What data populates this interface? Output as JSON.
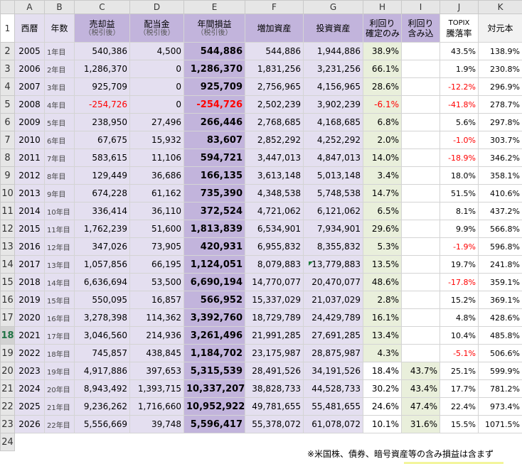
{
  "columns": [
    "A",
    "B",
    "C",
    "D",
    "E",
    "F",
    "G",
    "H",
    "I",
    "J",
    "K"
  ],
  "headers": {
    "a": "西暦",
    "b": "年数",
    "c_main": "売却益",
    "c_sub": "（税引後）",
    "d_main": "配当金",
    "d_sub": "（税引後）",
    "e_main": "年間損益",
    "e_sub": "（税引後）",
    "f": "増加資産",
    "g": "投資資産",
    "h_l1": "利回り",
    "h_l2": "確定のみ",
    "i_l1": "利回り",
    "i_l2": "含み込",
    "j_l1": "TOPIX",
    "j_l2": "騰落率",
    "k": "対元本"
  },
  "row_numbers": [
    "1",
    "2",
    "3",
    "4",
    "5",
    "6",
    "7",
    "8",
    "9",
    "10",
    "11",
    "12",
    "13",
    "14",
    "15",
    "16",
    "17",
    "18",
    "19",
    "20",
    "21",
    "22",
    "23",
    "24"
  ],
  "selected_row": "18",
  "rows": [
    {
      "year": "2005",
      "n": "1年目",
      "sale": "540,386",
      "div": "4,500",
      "annual": "544,886",
      "inc": "544,886",
      "inv": "1,944,886",
      "yc": "38.9%",
      "yi": "",
      "topix": "43.5%",
      "base": "138.9%"
    },
    {
      "year": "2006",
      "n": "2年目",
      "sale": "1,286,370",
      "div": "0",
      "annual": "1,286,370",
      "inc": "1,831,256",
      "inv": "3,231,256",
      "yc": "66.1%",
      "yi": "",
      "topix": "1.9%",
      "base": "230.8%"
    },
    {
      "year": "2007",
      "n": "3年目",
      "sale": "925,709",
      "div": "0",
      "annual": "925,709",
      "inc": "2,756,965",
      "inv": "4,156,965",
      "yc": "28.6%",
      "yi": "",
      "topix": "-12.2%",
      "base": "296.9%"
    },
    {
      "year": "2008",
      "n": "4年目",
      "sale": "-254,726",
      "div": "0",
      "annual": "-254,726",
      "inc": "2,502,239",
      "inv": "3,902,239",
      "yc": "-6.1%",
      "yi": "",
      "topix": "-41.8%",
      "base": "278.7%"
    },
    {
      "year": "2009",
      "n": "5年目",
      "sale": "238,950",
      "div": "27,496",
      "annual": "266,446",
      "inc": "2,768,685",
      "inv": "4,168,685",
      "yc": "6.8%",
      "yi": "",
      "topix": "5.6%",
      "base": "297.8%"
    },
    {
      "year": "2010",
      "n": "6年目",
      "sale": "67,675",
      "div": "15,932",
      "annual": "83,607",
      "inc": "2,852,292",
      "inv": "4,252,292",
      "yc": "2.0%",
      "yi": "",
      "topix": "-1.0%",
      "base": "303.7%"
    },
    {
      "year": "2011",
      "n": "7年目",
      "sale": "583,615",
      "div": "11,106",
      "annual": "594,721",
      "inc": "3,447,013",
      "inv": "4,847,013",
      "yc": "14.0%",
      "yi": "",
      "topix": "-18.9%",
      "base": "346.2%"
    },
    {
      "year": "2012",
      "n": "8年目",
      "sale": "129,449",
      "div": "36,686",
      "annual": "166,135",
      "inc": "3,613,148",
      "inv": "5,013,148",
      "yc": "3.4%",
      "yi": "",
      "topix": "18.0%",
      "base": "358.1%"
    },
    {
      "year": "2013",
      "n": "9年目",
      "sale": "674,228",
      "div": "61,162",
      "annual": "735,390",
      "inc": "4,348,538",
      "inv": "5,748,538",
      "yc": "14.7%",
      "yi": "",
      "topix": "51.5%",
      "base": "410.6%"
    },
    {
      "year": "2014",
      "n": "10年目",
      "sale": "336,414",
      "div": "36,110",
      "annual": "372,524",
      "inc": "4,721,062",
      "inv": "6,121,062",
      "yc": "6.5%",
      "yi": "",
      "topix": "8.1%",
      "base": "437.2%"
    },
    {
      "year": "2015",
      "n": "11年目",
      "sale": "1,762,239",
      "div": "51,600",
      "annual": "1,813,839",
      "inc": "6,534,901",
      "inv": "7,934,901",
      "yc": "29.6%",
      "yi": "",
      "topix": "9.9%",
      "base": "566.8%"
    },
    {
      "year": "2016",
      "n": "12年目",
      "sale": "347,026",
      "div": "73,905",
      "annual": "420,931",
      "inc": "6,955,832",
      "inv": "8,355,832",
      "yc": "5.3%",
      "yi": "",
      "topix": "-1.9%",
      "base": "596.8%"
    },
    {
      "year": "2017",
      "n": "13年目",
      "sale": "1,057,856",
      "div": "66,195",
      "annual": "1,124,051",
      "inc": "8,079,883",
      "inv": "13,779,883",
      "yc": "13.5%",
      "yi": "",
      "topix": "19.7%",
      "base": "241.8%"
    },
    {
      "year": "2018",
      "n": "14年目",
      "sale": "6,636,694",
      "div": "53,500",
      "annual": "6,690,194",
      "inc": "14,770,077",
      "inv": "20,470,077",
      "yc": "48.6%",
      "yi": "",
      "topix": "-17.8%",
      "base": "359.1%"
    },
    {
      "year": "2019",
      "n": "15年目",
      "sale": "550,095",
      "div": "16,857",
      "annual": "566,952",
      "inc": "15,337,029",
      "inv": "21,037,029",
      "yc": "2.8%",
      "yi": "",
      "topix": "15.2%",
      "base": "369.1%"
    },
    {
      "year": "2020",
      "n": "16年目",
      "sale": "3,278,398",
      "div": "114,362",
      "annual": "3,392,760",
      "inc": "18,729,789",
      "inv": "24,429,789",
      "yc": "16.1%",
      "yi": "",
      "topix": "4.8%",
      "base": "428.6%"
    },
    {
      "year": "2021",
      "n": "17年目",
      "sale": "3,046,560",
      "div": "214,936",
      "annual": "3,261,496",
      "inc": "21,991,285",
      "inv": "27,691,285",
      "yc": "13.4%",
      "yi": "",
      "topix": "10.4%",
      "base": "485.8%"
    },
    {
      "year": "2022",
      "n": "18年目",
      "sale": "745,857",
      "div": "438,845",
      "annual": "1,184,702",
      "inc": "23,175,987",
      "inv": "28,875,987",
      "yc": "4.3%",
      "yi": "",
      "topix": "-5.1%",
      "base": "506.6%"
    },
    {
      "year": "2023",
      "n": "19年目",
      "sale": "4,917,886",
      "div": "397,653",
      "annual": "5,315,539",
      "inc": "28,491,526",
      "inv": "34,191,526",
      "yc": "18.4%",
      "yi": "43.7%",
      "topix": "25.1%",
      "base": "599.9%"
    },
    {
      "year": "2024",
      "n": "20年目",
      "sale": "8,943,492",
      "div": "1,393,715",
      "annual": "10,337,207",
      "inc": "38,828,733",
      "inv": "44,528,733",
      "yc": "30.2%",
      "yi": "43.4%",
      "topix": "17.7%",
      "base": "781.2%"
    },
    {
      "year": "2025",
      "n": "21年目",
      "sale": "9,236,262",
      "div": "1,716,660",
      "annual": "10,952,922",
      "inc": "49,781,655",
      "inv": "55,481,655",
      "yc": "24.6%",
      "yi": "47.4%",
      "topix": "22.4%",
      "base": "973.4%"
    },
    {
      "year": "2026",
      "n": "22年目",
      "sale": "5,556,669",
      "div": "39,748",
      "annual": "5,596,417",
      "inc": "55,378,072",
      "inv": "61,078,072",
      "yc": "10.1%",
      "yi": "31.6%",
      "topix": "15.5%",
      "base": "1071.5%"
    }
  ],
  "note": "※米国株、債券、暗号資産等の含み損益は含まず",
  "colors": {
    "header_purple": "#c2b4dc",
    "lavender": "#e4dff0",
    "yield_green": "#e9efdb",
    "negative": "#ff0000"
  }
}
